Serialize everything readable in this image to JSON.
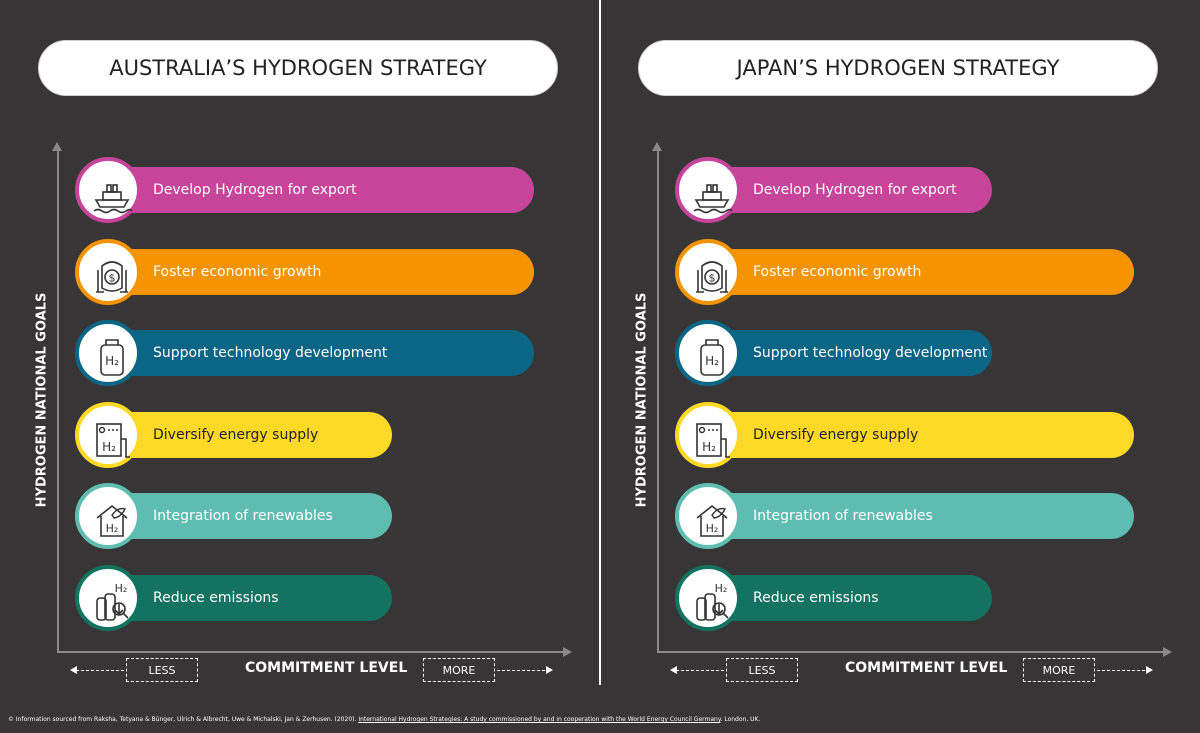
{
  "footnote": {
    "prefix": "© Information sourced from Raksha, Tetyana & Bünger, Ulrich & Albrecht, Uwe & Michalski, Jan & Zerhusen. (2020).",
    "link": "International Hydrogen Strategies: A study commissioned by and in cooperation with the World Energy Council Germany",
    "suffix": ". London, UK."
  },
  "colors": {
    "background": "#373535",
    "export": "#c6449a",
    "growth": "#f59400",
    "technology": "#0b6685",
    "supply": "#fbd925",
    "renewables": "#5ebdb0",
    "emissions": "#137260"
  },
  "chart_data": [
    {
      "type": "bar",
      "orientation": "horizontal",
      "title": "AUSTRALIA’S HYDROGEN STRATEGY",
      "ylabel": "HYDROGEN NATIONAL GOALS",
      "xlabel": "COMMITMENT LEVEL",
      "x_less": "LESS",
      "x_more": "MORE",
      "categories": [
        "Develop Hydrogen for export",
        "Foster economic growth",
        "Support technology development",
        "Diversify energy supply",
        "Integration of renewables",
        "Reduce emissions"
      ],
      "icons": [
        "ship-icon",
        "money-tank-icon",
        "h2-canister-icon",
        "h2-generator-icon",
        "h2-house-leaf-icon",
        "h2-emissions-icon"
      ],
      "bar_colors": [
        "#c6449a",
        "#f59400",
        "#0b6685",
        "#fbd925",
        "#5ebdb0",
        "#137260"
      ],
      "values": [
        3,
        3,
        3,
        2,
        2,
        2
      ],
      "xlim": [
        0,
        3
      ]
    },
    {
      "type": "bar",
      "orientation": "horizontal",
      "title": "JAPAN’S HYDROGEN STRATEGY",
      "ylabel": "HYDROGEN NATIONAL GOALS",
      "xlabel": "COMMITMENT LEVEL",
      "x_less": "LESS",
      "x_more": "MORE",
      "categories": [
        "Develop Hydrogen for export",
        "Foster economic growth",
        "Support technology development",
        "Diversify energy supply",
        "Integration of renewables",
        "Reduce emissions"
      ],
      "icons": [
        "ship-icon",
        "money-tank-icon",
        "h2-canister-icon",
        "h2-generator-icon",
        "h2-house-leaf-icon",
        "h2-emissions-icon"
      ],
      "bar_colors": [
        "#c6449a",
        "#f59400",
        "#0b6685",
        "#fbd925",
        "#5ebdb0",
        "#137260"
      ],
      "values": [
        2,
        3,
        2,
        3,
        3,
        2
      ],
      "xlim": [
        0,
        3
      ]
    }
  ]
}
